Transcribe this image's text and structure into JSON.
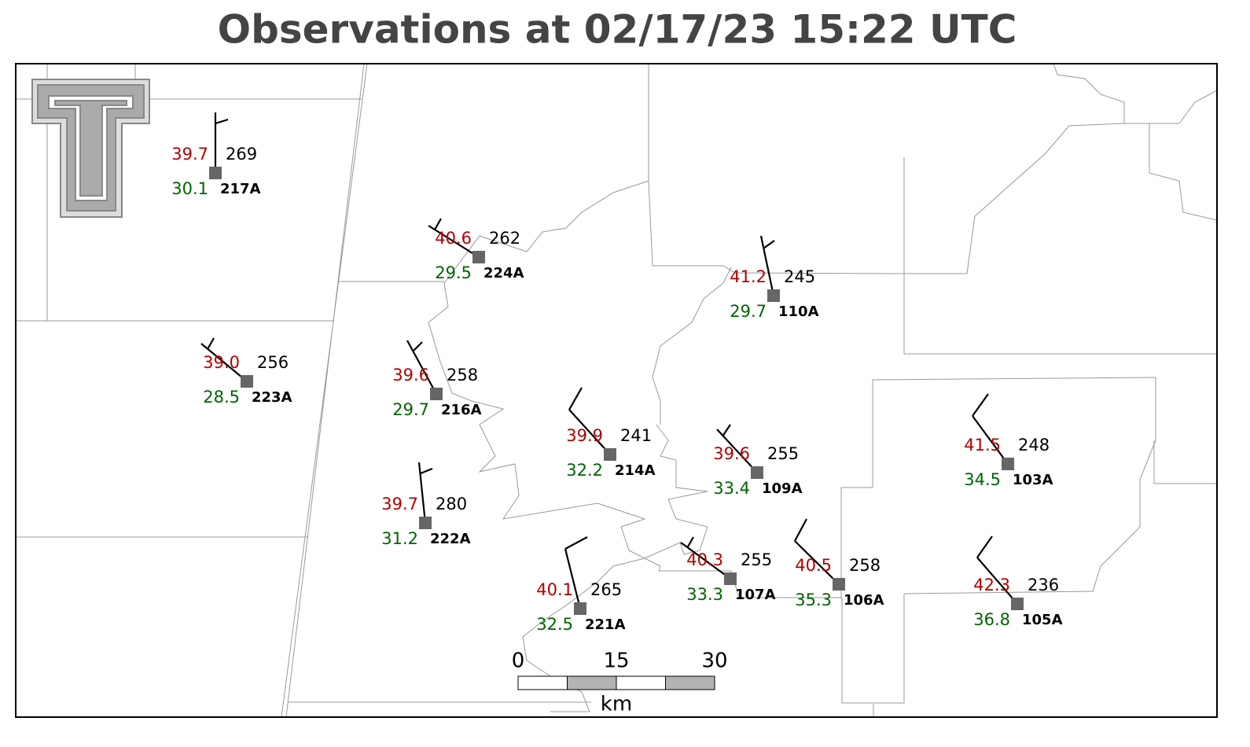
{
  "title": "Observations at 02/17/23 15:22 UTC",
  "stations": [
    {
      "id": "217A",
      "temperature": "39.7",
      "dewpoint": "30.1",
      "pressure": "269"
    },
    {
      "id": "224A",
      "temperature": "40.6",
      "dewpoint": "29.5",
      "pressure": "262"
    },
    {
      "id": "110A",
      "temperature": "41.2",
      "dewpoint": "29.7",
      "pressure": "245"
    },
    {
      "id": "223A",
      "temperature": "39.0",
      "dewpoint": "28.5",
      "pressure": "256"
    },
    {
      "id": "216A",
      "temperature": "39.6",
      "dewpoint": "29.7",
      "pressure": "258"
    },
    {
      "id": "214A",
      "temperature": "39.9",
      "dewpoint": "32.2",
      "pressure": "241"
    },
    {
      "id": "109A",
      "temperature": "39.6",
      "dewpoint": "33.4",
      "pressure": "255"
    },
    {
      "id": "222A",
      "temperature": "39.7",
      "dewpoint": "31.2",
      "pressure": "280"
    },
    {
      "id": "103A",
      "temperature": "41.5",
      "dewpoint": "34.5",
      "pressure": "248"
    },
    {
      "id": "221A",
      "temperature": "40.1",
      "dewpoint": "32.5",
      "pressure": "265"
    },
    {
      "id": "107A",
      "temperature": "40.3",
      "dewpoint": "33.3",
      "pressure": "255"
    },
    {
      "id": "106A",
      "temperature": "40.5",
      "dewpoint": "35.3",
      "pressure": "258"
    },
    {
      "id": "105A",
      "temperature": "42.3",
      "dewpoint": "36.8",
      "pressure": "236"
    }
  ],
  "scale_bar": {
    "labels": [
      "0",
      "15",
      "30"
    ],
    "unit": "km"
  }
}
